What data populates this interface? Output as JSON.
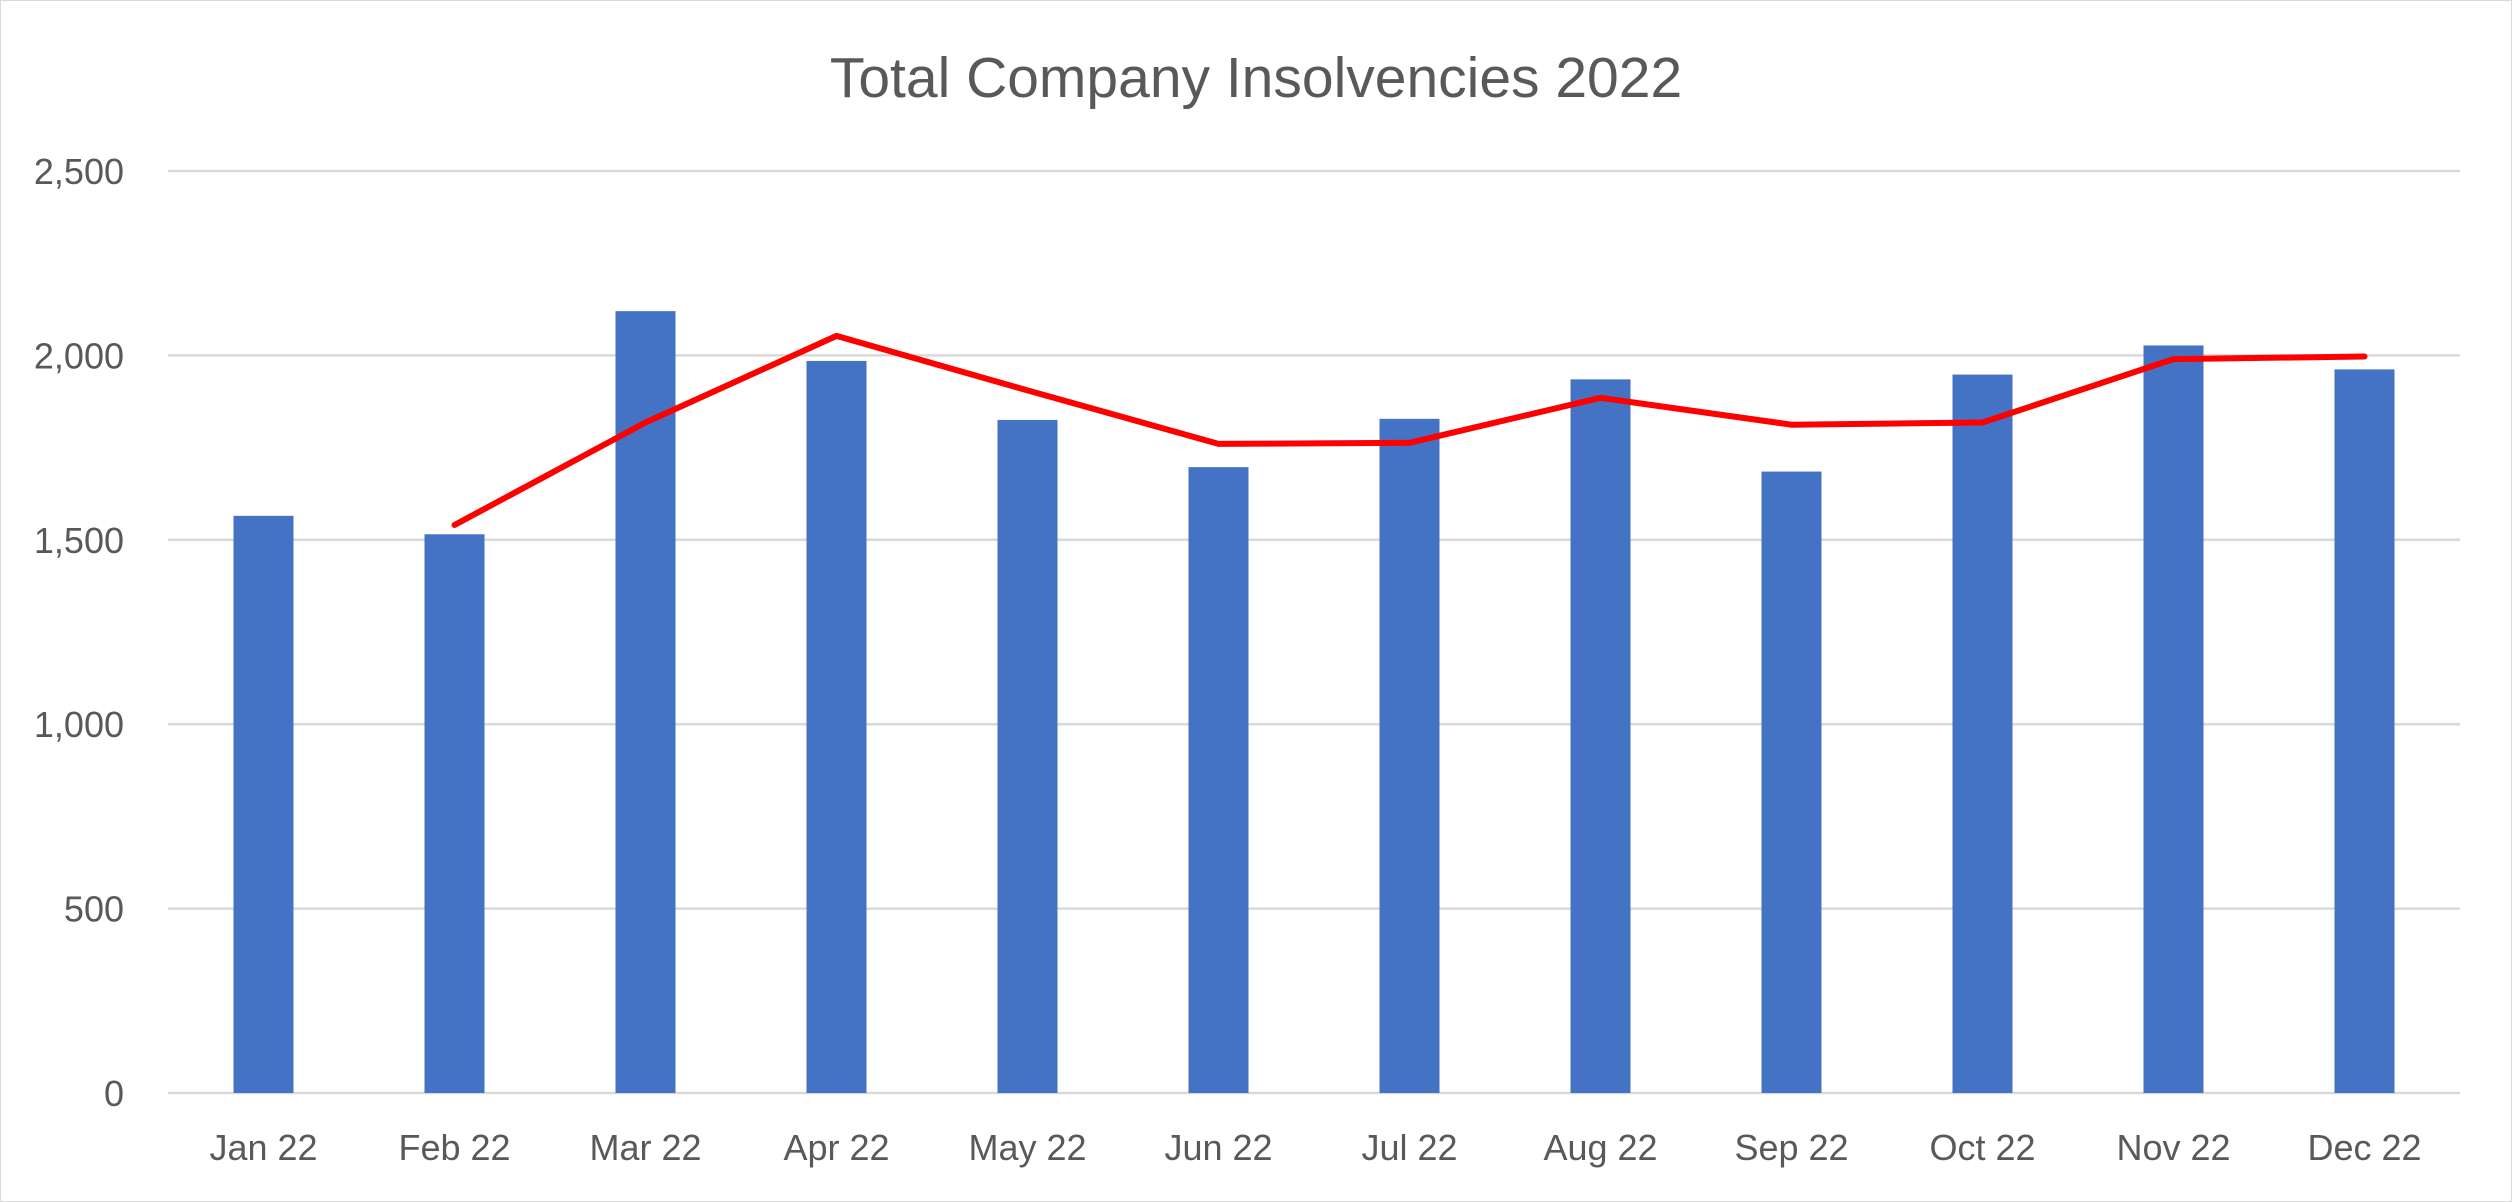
{
  "chart_data": {
    "type": "bar",
    "title": "Total Company Insolvencies 2022",
    "xlabel": "",
    "ylabel": "",
    "categories": [
      "Jan 22",
      "Feb 22",
      "Mar 22",
      "Apr 22",
      "May 22",
      "Jun 22",
      "Jul 22",
      "Aug 22",
      "Sep 22",
      "Oct 22",
      "Nov 22",
      "Dec 22"
    ],
    "series": [
      {
        "type": "bar",
        "values": [
          1565,
          1515,
          2120,
          1985,
          1825,
          1697,
          1828,
          1935,
          1685,
          1948,
          2027,
          1962
        ]
      },
      {
        "type": "line",
        "values": [
          null,
          1540,
          1818,
          2053,
          1905,
          1760,
          1763,
          1885,
          1812,
          1818,
          1990,
          1997
        ]
      }
    ],
    "ylim": [
      0,
      2500
    ],
    "yticks": [
      0,
      500,
      1000,
      1500,
      2000,
      2500
    ],
    "ytick_labels": [
      "0",
      "500",
      "1,000",
      "1,500",
      "2,000",
      "2,500"
    ],
    "grid": true,
    "legend": "none",
    "colors": {
      "bar": "#4472C4",
      "line": "#FF0000",
      "grid": "#D9D9D9",
      "text": "#595959"
    }
  }
}
